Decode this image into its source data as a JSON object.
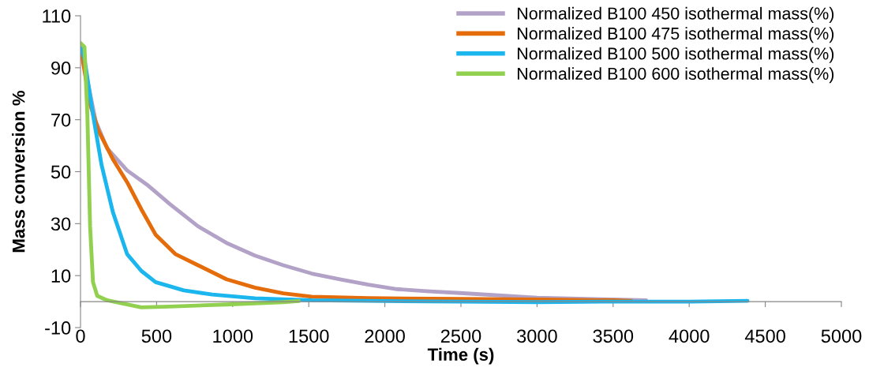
{
  "chart_data": {
    "type": "line",
    "xlabel": "Time (s)",
    "ylabel": "Mass conversion %",
    "xlim": [
      0,
      5000
    ],
    "xticks": [
      0,
      500,
      1000,
      1500,
      2000,
      2500,
      3000,
      3500,
      4000,
      4500,
      5000
    ],
    "ylim": [
      -10,
      110
    ],
    "yticks": [
      -10,
      10,
      30,
      50,
      70,
      90,
      110
    ],
    "grid": false,
    "legend": "top right",
    "marker": "none",
    "line_style": "solid",
    "series": [
      {
        "name": "Normalized B100 450 isothermal mass(%)",
        "color": "#b3a2c7",
        "x": [
          0,
          100,
          175,
          306,
          437,
          586,
          772,
          959,
          1146,
          1332,
          1519,
          1705,
          1892,
          2079,
          2272,
          2495,
          3000,
          3500,
          3717
        ],
        "values": [
          98,
          69.4,
          59,
          50.5,
          45,
          37.6,
          29,
          22.6,
          17.7,
          14,
          10.8,
          8.6,
          6.5,
          4.8,
          4,
          3.3,
          1.5,
          0.8,
          0.5
        ]
      },
      {
        "name": "Normalized B100 475 isothermal mass(%)",
        "color": "#e46c0a",
        "x": [
          0,
          63,
          119,
          213,
          306,
          400,
          493,
          623,
          772,
          959,
          1146,
          1332,
          1519,
          1892,
          2500,
          3000,
          3500,
          3620
        ],
        "values": [
          98,
          76,
          65.6,
          54.8,
          46,
          35.5,
          25.8,
          18.3,
          14,
          8.6,
          5.4,
          3.2,
          1.9,
          1.3,
          1,
          0.8,
          0.5,
          0.3
        ]
      },
      {
        "name": "Normalized B100 500 isothermal mass(%)",
        "color": "#1cb6ef",
        "x": [
          0,
          26,
          82,
          138,
          213,
          306,
          400,
          493,
          679,
          866,
          1146,
          1519,
          2000,
          2500,
          3000,
          3500,
          4000,
          4383
        ],
        "values": [
          98,
          93.5,
          72,
          52.7,
          34.4,
          18.3,
          11.8,
          7.5,
          4.3,
          2.7,
          1.3,
          0.5,
          0.2,
          0,
          -0.2,
          0,
          0,
          0.3
        ]
      },
      {
        "name": "Normalized B100 600 isothermal mass(%)",
        "color": "#92d050",
        "x": [
          0,
          26,
          45,
          63,
          82,
          110,
          175,
          306,
          400,
          586,
          959,
          1332,
          1435
        ],
        "values": [
          99.5,
          98,
          72,
          29,
          7.5,
          2.2,
          0.5,
          -1.1,
          -2.2,
          -1.9,
          -1.1,
          -0.2,
          0.2
        ]
      }
    ]
  }
}
